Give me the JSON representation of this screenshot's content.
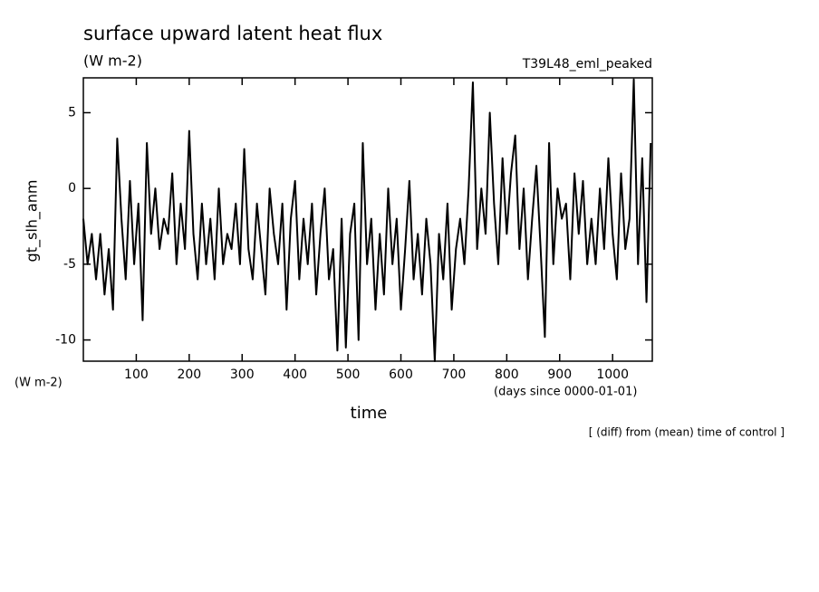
{
  "chart_data": {
    "type": "line",
    "title": "surface upward latent heat flux",
    "subtitle": "(W m-2)",
    "run_label": "T39L48_eml_peaked",
    "y_label": "gt_slh_anm",
    "y_unit": "(W m-2)",
    "x_label": "time",
    "x_unit": "(days since 0000-01-01)",
    "footnote": "[ (diff) from (mean) time of control ]",
    "color": "#000000",
    "xlim": [
      0,
      1075
    ],
    "ylim": [
      -11.4,
      7.3
    ],
    "xticks": [
      100,
      200,
      300,
      400,
      500,
      600,
      700,
      800,
      900,
      1000
    ],
    "yticks": [
      -10,
      -5,
      0,
      5
    ],
    "x": [
      0,
      8,
      16,
      24,
      32,
      40,
      48,
      56,
      64,
      72,
      80,
      88,
      96,
      104,
      112,
      120,
      128,
      136,
      144,
      152,
      160,
      168,
      176,
      184,
      192,
      200,
      208,
      216,
      224,
      232,
      240,
      248,
      256,
      264,
      272,
      280,
      288,
      296,
      304,
      312,
      320,
      328,
      336,
      344,
      352,
      360,
      368,
      376,
      384,
      392,
      400,
      408,
      416,
      424,
      432,
      440,
      448,
      456,
      464,
      472,
      480,
      488,
      496,
      504,
      512,
      520,
      528,
      536,
      544,
      552,
      560,
      568,
      576,
      584,
      592,
      600,
      608,
      616,
      624,
      632,
      640,
      648,
      656,
      664,
      672,
      680,
      688,
      696,
      704,
      712,
      720,
      728,
      736,
      744,
      752,
      760,
      768,
      776,
      784,
      792,
      800,
      808,
      816,
      824,
      832,
      840,
      848,
      856,
      864,
      872,
      880,
      888,
      896,
      904,
      912,
      920,
      928,
      936,
      944,
      952,
      960,
      968,
      976,
      984,
      992,
      1000,
      1008,
      1016,
      1024,
      1032,
      1040,
      1048,
      1056,
      1064,
      1072
    ],
    "values": [
      -2,
      -5,
      -3,
      -6,
      -3,
      -7,
      -4,
      -8,
      3.3,
      -2,
      -6,
      0.5,
      -5,
      -1,
      -8.7,
      3,
      -3,
      0,
      -4,
      -2,
      -3,
      1,
      -5,
      -1,
      -4,
      3.8,
      -3,
      -6,
      -1,
      -5,
      -2,
      -6,
      0,
      -5,
      -3,
      -4,
      -1,
      -5,
      2.6,
      -4,
      -6,
      -1,
      -4,
      -7,
      0,
      -3,
      -5,
      -1,
      -8,
      -2,
      0.5,
      -6,
      -2,
      -5,
      -1,
      -7,
      -3,
      0,
      -6,
      -4,
      -10.7,
      -2,
      -10.5,
      -3,
      -1,
      -10,
      3,
      -5,
      -2,
      -8,
      -3,
      -7,
      0,
      -5,
      -2,
      -8,
      -4,
      0.5,
      -6,
      -3,
      -7,
      -2,
      -5,
      -11.4,
      -3,
      -6,
      -1,
      -8,
      -4,
      -2,
      -5,
      0,
      7,
      -4,
      0,
      -3,
      5,
      -1,
      -5,
      2,
      -3,
      1,
      3.5,
      -4,
      0,
      -6,
      -2,
      1.5,
      -4,
      -9.8,
      3,
      -5,
      0,
      -2,
      -1,
      -6,
      1,
      -3,
      0.5,
      -5,
      -2,
      -5,
      0,
      -4,
      2,
      -3,
      -6,
      1,
      -4,
      -2,
      7.2,
      -5,
      2,
      -7.5,
      3
    ]
  }
}
